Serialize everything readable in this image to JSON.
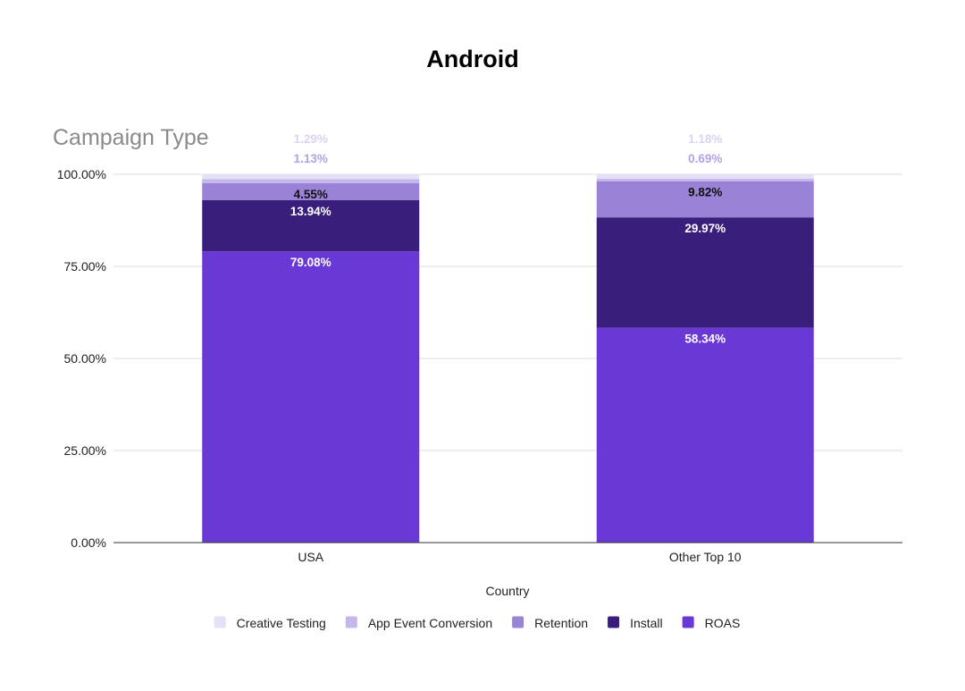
{
  "chart_data": {
    "type": "bar",
    "stacked": true,
    "title": "Android",
    "ylabel": "Campaign Type",
    "xlabel": "Country",
    "ylim": [
      0,
      100
    ],
    "y_ticks": [
      "0.00%",
      "25.00%",
      "50.00%",
      "75.00%",
      "100.00%"
    ],
    "y_tick_values": [
      0,
      25,
      50,
      75,
      100
    ],
    "grid": true,
    "legend_position": "bottom",
    "categories": [
      "USA",
      "Other Top 10"
    ],
    "series": [
      {
        "name": "ROAS",
        "color": "#6a38d4",
        "label_color": "#ffffff",
        "values": [
          79.08,
          58.34
        ],
        "labels": [
          "79.08%",
          "58.34%"
        ]
      },
      {
        "name": "Install",
        "color": "#391e7c",
        "label_color": "#ffffff",
        "values": [
          13.94,
          29.97
        ],
        "labels": [
          "13.94%",
          "29.97%"
        ]
      },
      {
        "name": "Retention",
        "color": "#9a82d6",
        "label_color": "#111111",
        "values": [
          4.55,
          9.82
        ],
        "labels": [
          "4.55%",
          "9.82%"
        ]
      },
      {
        "name": "App Event Conversion",
        "color": "#c5b6ec",
        "label_color": "#b3a1e6",
        "values": [
          1.13,
          0.69
        ],
        "labels": [
          "1.13%",
          "0.69%"
        ]
      },
      {
        "name": "Creative Testing",
        "color": "#e6e0f7",
        "label_color": "#dcd3f4",
        "values": [
          1.29,
          1.18
        ],
        "labels": [
          "1.29%",
          "1.18%"
        ]
      }
    ],
    "legend_order": [
      "Creative Testing",
      "App Event Conversion",
      "Retention",
      "Install",
      "ROAS"
    ]
  }
}
